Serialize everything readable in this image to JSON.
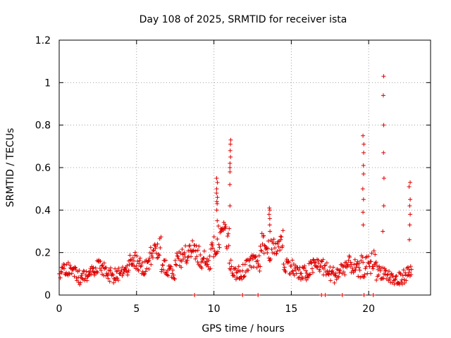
{
  "chart_data": {
    "type": "scatter",
    "title": "Day 108 of 2025, SRMTID for receiver ista",
    "xlabel": "GPS time / hours",
    "ylabel": "SRMTID / TECUs",
    "xlim": [
      0,
      24
    ],
    "ylim": [
      0,
      1.2
    ],
    "xticks": [
      "0",
      "5",
      "10",
      "15",
      "20"
    ],
    "yticks": [
      "0",
      "0.2",
      "0.4",
      "0.6",
      "0.8",
      "1",
      "1.2"
    ],
    "grid": true,
    "marker": "+",
    "series_color": "#e00000",
    "baseline_segments": [
      {
        "x0": 0.0,
        "x1": 2.0,
        "base": 0.1,
        "amp": 0.035
      },
      {
        "x0": 2.0,
        "x1": 4.5,
        "base": 0.11,
        "amp": 0.035
      },
      {
        "x0": 4.5,
        "x1": 5.8,
        "base": 0.15,
        "amp": 0.04
      },
      {
        "x0": 5.8,
        "x1": 6.6,
        "base": 0.2,
        "amp": 0.05
      },
      {
        "x0": 6.6,
        "x1": 7.5,
        "base": 0.12,
        "amp": 0.035
      },
      {
        "x0": 7.5,
        "x1": 9.8,
        "base": 0.18,
        "amp": 0.05
      },
      {
        "x0": 9.8,
        "x1": 11.0,
        "base": 0.25,
        "amp": 0.06
      },
      {
        "x0": 11.0,
        "x1": 13.0,
        "base": 0.13,
        "amp": 0.04
      },
      {
        "x0": 13.0,
        "x1": 14.5,
        "base": 0.24,
        "amp": 0.05
      },
      {
        "x0": 14.5,
        "x1": 16.0,
        "base": 0.12,
        "amp": 0.04
      },
      {
        "x0": 16.0,
        "x1": 19.5,
        "base": 0.12,
        "amp": 0.04
      },
      {
        "x0": 19.5,
        "x1": 20.5,
        "base": 0.16,
        "amp": 0.05
      },
      {
        "x0": 20.5,
        "x1": 22.8,
        "base": 0.09,
        "amp": 0.035
      }
    ],
    "spikes": [
      {
        "x": 10.2,
        "y": [
          0.35,
          0.4,
          0.43,
          0.46,
          0.5,
          0.53,
          0.55,
          0.48,
          0.44
        ]
      },
      {
        "x": 11.05,
        "y": [
          0.42,
          0.52,
          0.58,
          0.62,
          0.65,
          0.68,
          0.71,
          0.73,
          0.6
        ]
      },
      {
        "x": 13.6,
        "y": [
          0.3,
          0.33,
          0.36,
          0.38,
          0.4,
          0.41
        ]
      },
      {
        "x": 19.65,
        "y": [
          0.33,
          0.39,
          0.45,
          0.5,
          0.57,
          0.61,
          0.67,
          0.71,
          0.75
        ]
      },
      {
        "x": 20.95,
        "y": [
          0.3,
          0.42,
          0.55,
          0.67,
          0.8,
          0.94,
          1.03
        ]
      },
      {
        "x": 22.65,
        "y": [
          0.26,
          0.33,
          0.38,
          0.42,
          0.45,
          0.51,
          0.53
        ]
      }
    ],
    "near_zero_points": [
      8.75,
      11.85,
      12.85,
      16.95,
      17.2,
      18.3,
      19.7,
      20.3
    ]
  }
}
